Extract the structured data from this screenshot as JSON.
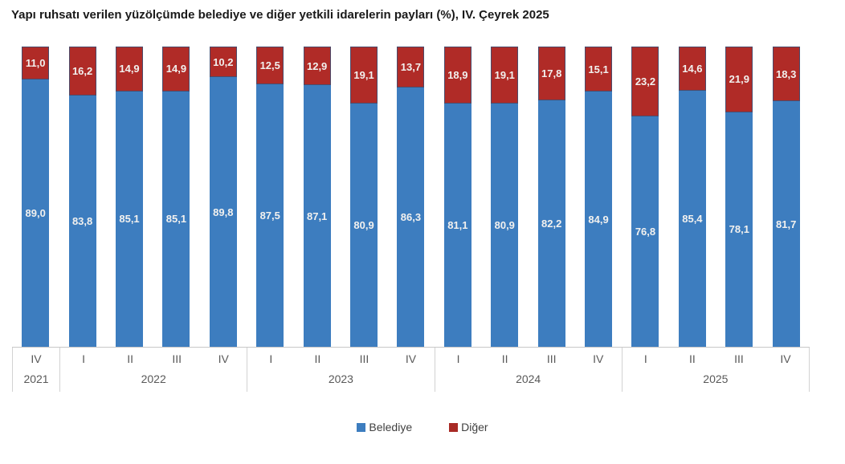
{
  "title": "Yapı ruhsatı verilen yüzölçümde belediye ve diğer yetkili idarelerin payları (%), IV. Çeyrek 2025",
  "legend": {
    "items": [
      {
        "label": "Belediye",
        "color": "#3d7dbf"
      },
      {
        "label": "Diğer",
        "color": "#a82a25"
      }
    ]
  },
  "colors": {
    "bar_blue": "#3d7dbf",
    "bar_red": "#b02b27",
    "red_border": "#4b4b6b",
    "axis_line": "#c8c8c8",
    "axis_text": "#595959",
    "value_text": "#f2f1ef",
    "title_text": "#1a1a1a"
  },
  "chart_data": {
    "type": "bar",
    "stacked": true,
    "unit": "%",
    "ylim": [
      0,
      100
    ],
    "grid": false,
    "legend_position": "bottom",
    "title": "Yapı ruhsatı verilen yüzölçümde belediye ve diğer yetkili idarelerin payları (%), IV. Çeyrek 2025",
    "categories_quarters": [
      "IV",
      "I",
      "II",
      "III",
      "IV",
      "I",
      "II",
      "III",
      "IV",
      "I",
      "II",
      "III",
      "IV",
      "I",
      "II",
      "III",
      "IV"
    ],
    "year_groups": [
      {
        "year": "2021",
        "count": 1
      },
      {
        "year": "2022",
        "count": 4
      },
      {
        "year": "2023",
        "count": 4
      },
      {
        "year": "2024",
        "count": 4
      },
      {
        "year": "2025",
        "count": 4
      }
    ],
    "series": [
      {
        "name": "Belediye",
        "color": "#3d7dbf",
        "values": [
          89.0,
          83.8,
          85.1,
          85.1,
          89.8,
          87.5,
          87.1,
          80.9,
          86.3,
          81.1,
          80.9,
          82.2,
          84.9,
          76.8,
          85.4,
          78.1,
          81.7
        ],
        "labels": [
          "89,0",
          "83,8",
          "85,1",
          "85,1",
          "89,8",
          "87,5",
          "87,1",
          "80,9",
          "86,3",
          "81,1",
          "80,9",
          "82,2",
          "84,9",
          "76,8",
          "85,4",
          "78,1",
          "81,7"
        ]
      },
      {
        "name": "Diğer",
        "color": "#b02b27",
        "border_color": "#4b4b6b",
        "values": [
          11.0,
          16.2,
          14.9,
          14.9,
          10.2,
          12.5,
          12.9,
          19.1,
          13.7,
          18.9,
          19.1,
          17.8,
          15.1,
          23.2,
          14.6,
          21.9,
          18.3
        ],
        "labels": [
          "11,0",
          "16,2",
          "14,9",
          "14,9",
          "10,2",
          "12,5",
          "12,9",
          "19,1",
          "13,7",
          "18,9",
          "19,1",
          "17,8",
          "15,1",
          "23,2",
          "14,6",
          "21,9",
          "18,3"
        ]
      }
    ]
  }
}
